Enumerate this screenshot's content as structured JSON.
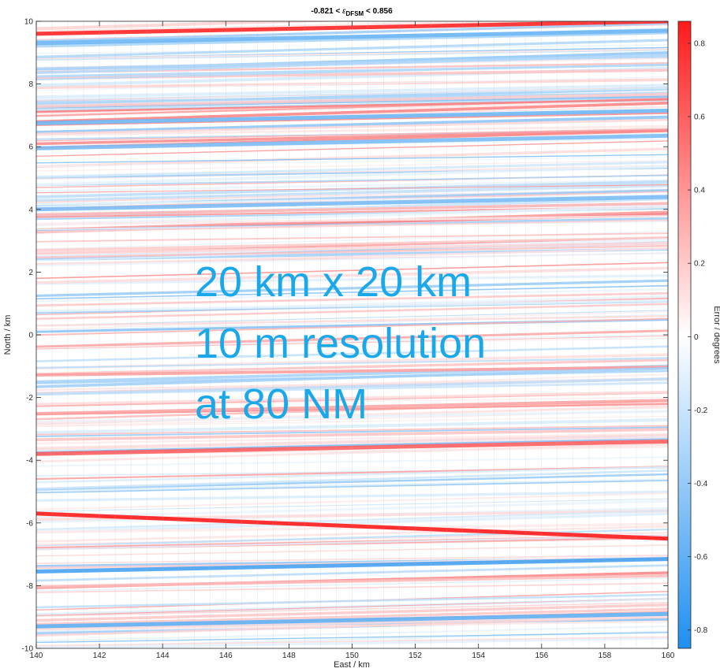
{
  "chart_data": {
    "type": "heatmap",
    "title": {
      "prefix": "-0.821 < ",
      "symbol": "ε",
      "subscript": "DFSM",
      "suffix": " < 0.856"
    },
    "xlabel": "East / km",
    "ylabel": "North / km",
    "colorbar_label": "Error / degrees",
    "xlim": [
      140,
      160
    ],
    "ylim": [
      -10,
      10
    ],
    "clim": [
      -0.85,
      0.86
    ],
    "x_ticks": [
      140,
      142,
      144,
      146,
      148,
      150,
      152,
      154,
      156,
      158,
      160
    ],
    "y_ticks": [
      -10,
      -8,
      -6,
      -4,
      -2,
      0,
      2,
      4,
      6,
      8,
      10
    ],
    "colorbar_ticks": [
      0.8,
      0.6,
      0.4,
      0.2,
      0,
      -0.2,
      -0.4,
      -0.6,
      -0.8
    ],
    "colormap": {
      "negative": "#1f8ff0",
      "zero": "#ffffff",
      "positive": "#ff1a1a"
    },
    "error_range": {
      "min": -0.821,
      "max": 0.856
    },
    "pattern": "quasi-horizontal error streaks, slope rising to the east",
    "dominant_streaks": [
      {
        "north_at_140km": 9.6,
        "value": 0.82
      },
      {
        "north_at_140km": 9.3,
        "value": -0.55
      },
      {
        "north_at_140km": 6.75,
        "value": -0.55
      },
      {
        "north_at_140km": 5.95,
        "value": -0.5
      },
      {
        "north_at_140km": 4.0,
        "value": -0.5
      },
      {
        "north_at_140km": -3.8,
        "value": 0.6
      },
      {
        "north_at_140km": -5.7,
        "value": 0.856
      },
      {
        "north_at_140km": -7.55,
        "value": -0.7
      },
      {
        "north_at_140km": -9.3,
        "value": -0.6
      }
    ],
    "annotation": [
      "20 km x 20 km",
      "10 m resolution",
      "at 80 NM"
    ]
  },
  "annotation_color": "#1aa8e8"
}
